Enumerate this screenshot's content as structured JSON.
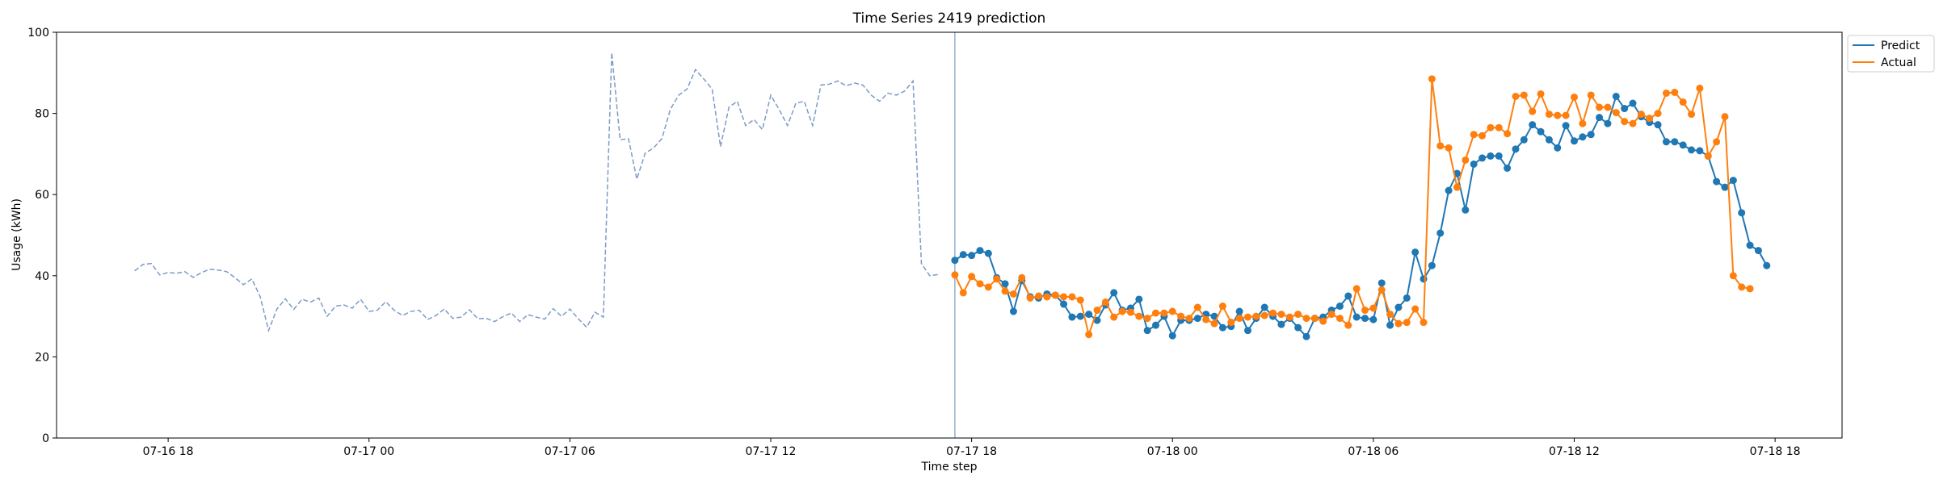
{
  "chart_data": {
    "type": "line",
    "title": "Time Series 2419 prediction",
    "xlabel": "Time step",
    "ylabel": "Usage (kWh)",
    "ylim": [
      0,
      100
    ],
    "yticks": [
      0,
      20,
      40,
      60,
      80,
      100
    ],
    "xlim": [
      "2024-07-16 14:40",
      "2024-07-18 20:00"
    ],
    "xticks": [
      "07-16 18",
      "07-17 00",
      "07-17 06",
      "07-17 12",
      "07-17 18",
      "07-18 00",
      "07-18 06",
      "07-18 12",
      "07-18 18"
    ],
    "interval_minutes": 15,
    "legend_position": "top-right",
    "forecast_start": "2024-07-17 17:30",
    "history": {
      "start": "2024-07-16 17:00",
      "color": "#7d9bc7",
      "style": "dashed",
      "values": [
        41.2,
        42.8,
        43.0,
        40.2,
        40.8,
        40.6,
        41.0,
        39.6,
        40.8,
        41.6,
        41.4,
        41.0,
        39.5,
        37.8,
        39.2,
        34.8,
        26.5,
        31.8,
        34.3,
        31.7,
        34.2,
        33.5,
        34.5,
        30.0,
        32.5,
        32.8,
        32.0,
        34.2,
        31.2,
        31.5,
        33.6,
        31.5,
        30.2,
        31.2,
        31.5,
        29.2,
        30.2,
        31.8,
        29.5,
        29.8,
        31.6,
        29.4,
        29.5,
        28.7,
        29.9,
        30.8,
        28.7,
        30.4,
        29.8,
        29.3,
        31.9,
        30.0,
        31.8,
        29.4,
        27.3,
        31.0,
        29.8,
        95.0,
        73.5,
        73.8,
        63.8,
        70.2,
        71.5,
        73.8,
        81.0,
        84.5,
        86.0,
        90.8,
        88.5,
        86.0,
        71.8,
        81.5,
        83.0,
        77.0,
        78.5,
        76.0,
        84.5,
        81.0,
        77.0,
        82.5,
        83.0,
        77.0,
        87.0,
        87.2,
        88.0,
        86.8,
        87.5,
        87.0,
        84.5,
        83.0,
        85.0,
        84.5,
        85.5,
        88.0,
        43.0,
        40.0,
        40.3
      ]
    },
    "series": [
      {
        "name": "Predict",
        "color": "#1f77b4",
        "start": "2024-07-17 17:30",
        "values": [
          43.8,
          45.2,
          45.0,
          46.2,
          45.5,
          39.5,
          38.0,
          31.2,
          38.8,
          34.8,
          34.5,
          35.5,
          35.2,
          33.0,
          29.8,
          30.0,
          30.5,
          29.0,
          32.8,
          35.8,
          31.5,
          32.0,
          34.2,
          26.5,
          27.8,
          30.0,
          25.2,
          29.0,
          29.0,
          29.5,
          30.5,
          30.0,
          27.2,
          27.5,
          31.2,
          26.5,
          29.5,
          32.2,
          30.0,
          28.0,
          29.5,
          27.2,
          25.0,
          29.5,
          29.8,
          31.5,
          32.5,
          35.0,
          29.8,
          29.5,
          29.2,
          38.2,
          27.8,
          32.2,
          34.5,
          45.8,
          39.2,
          42.5,
          50.5,
          61.0,
          65.2,
          56.2,
          67.5,
          69.0,
          69.5,
          69.5,
          66.5,
          71.2,
          73.5,
          77.2,
          75.5,
          73.5,
          71.5,
          77.0,
          73.2,
          74.2,
          74.8,
          79.0,
          77.5,
          84.2,
          81.2,
          82.5,
          79.2,
          77.8,
          77.2,
          73.0,
          73.0,
          72.2,
          71.0,
          70.8,
          69.5,
          63.2,
          61.8,
          63.5,
          55.5,
          47.5,
          46.2,
          42.5
        ]
      },
      {
        "name": "Actual",
        "color": "#ff7f0e",
        "start": "2024-07-17 17:30",
        "values": [
          40.2,
          35.8,
          39.8,
          38.0,
          37.2,
          39.2,
          36.2,
          35.5,
          39.5,
          34.5,
          35.0,
          34.8,
          35.2,
          34.8,
          34.8,
          34.0,
          25.5,
          31.5,
          33.5,
          29.8,
          31.2,
          31.0,
          30.0,
          29.5,
          30.8,
          30.8,
          31.2,
          30.0,
          29.5,
          32.2,
          29.2,
          28.2,
          32.5,
          28.5,
          29.5,
          29.8,
          30.0,
          30.2,
          30.8,
          30.5,
          29.8,
          30.5,
          29.5,
          29.5,
          28.8,
          30.5,
          29.5,
          27.8,
          36.8,
          31.5,
          32.0,
          36.5,
          30.5,
          28.2,
          28.5,
          31.8,
          28.5,
          88.5,
          72.0,
          71.5,
          61.8,
          68.5,
          74.8,
          74.5,
          76.5,
          76.5,
          75.0,
          84.2,
          84.5,
          80.5,
          84.8,
          79.8,
          79.5,
          79.5,
          84.0,
          77.5,
          84.5,
          81.5,
          81.5,
          80.2,
          78.0,
          77.5,
          79.8,
          78.8,
          80.0,
          85.0,
          85.2,
          82.8,
          79.8,
          86.2,
          69.5,
          73.0,
          79.2,
          40.0,
          37.2,
          36.8
        ]
      }
    ]
  }
}
